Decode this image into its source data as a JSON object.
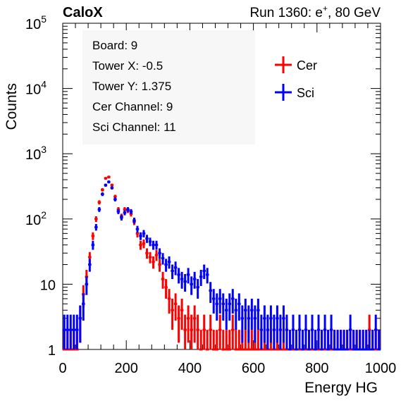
{
  "header": {
    "left_label": "CaloX",
    "right_label_prefix": "Run 1360: e",
    "right_label_sup": "+",
    "right_label_suffix": ", 80 GeV"
  },
  "stats_box": {
    "lines": [
      "Board: 9",
      "Tower X: -0.5",
      "Tower Y: 1.375",
      "Cer Channel: 9",
      "Sci Channel: 11"
    ]
  },
  "chart_data": {
    "type": "histogram",
    "xlabel": "Energy HG",
    "ylabel": "Counts",
    "xlim": [
      0,
      1000
    ],
    "ylim": [
      1,
      100000
    ],
    "yscale": "log",
    "bin_width": 10,
    "xticks": [
      0,
      200,
      400,
      600,
      800,
      1000
    ],
    "xtick_labels": [
      "0",
      "200",
      "400",
      "600",
      "800",
      "1000"
    ],
    "yticks": [
      1,
      10,
      100,
      1000,
      10000,
      100000
    ],
    "ytick_labels": [
      {
        "base": "1",
        "exp": ""
      },
      {
        "base": "10",
        "exp": ""
      },
      {
        "base": "10",
        "exp": "2"
      },
      {
        "base": "10",
        "exp": "3"
      },
      {
        "base": "10",
        "exp": "4"
      },
      {
        "base": "10",
        "exp": "5"
      }
    ],
    "legend_position": "top-right",
    "series": [
      {
        "name": "Cer",
        "color": "#ff0000",
        "bins": [
          {
            "x": 0,
            "y": 1
          },
          {
            "x": 10,
            "y": 1
          },
          {
            "x": 20,
            "y": 1
          },
          {
            "x": 30,
            "y": 1
          },
          {
            "x": 40,
            "y": 1
          },
          {
            "x": 50,
            "y": 3
          },
          {
            "x": 60,
            "y": 7
          },
          {
            "x": 70,
            "y": 13
          },
          {
            "x": 80,
            "y": 26
          },
          {
            "x": 90,
            "y": 55
          },
          {
            "x": 100,
            "y": 100
          },
          {
            "x": 110,
            "y": 180
          },
          {
            "x": 120,
            "y": 280
          },
          {
            "x": 130,
            "y": 420
          },
          {
            "x": 140,
            "y": 440
          },
          {
            "x": 150,
            "y": 330
          },
          {
            "x": 160,
            "y": 220
          },
          {
            "x": 170,
            "y": 140
          },
          {
            "x": 180,
            "y": 110
          },
          {
            "x": 190,
            "y": 140
          },
          {
            "x": 200,
            "y": 135
          },
          {
            "x": 210,
            "y": 120
          },
          {
            "x": 220,
            "y": 90
          },
          {
            "x": 230,
            "y": 60
          },
          {
            "x": 240,
            "y": 40
          },
          {
            "x": 250,
            "y": 42
          },
          {
            "x": 260,
            "y": 30
          },
          {
            "x": 270,
            "y": 26
          },
          {
            "x": 280,
            "y": 22
          },
          {
            "x": 290,
            "y": 28
          },
          {
            "x": 300,
            "y": 20
          },
          {
            "x": 310,
            "y": 12
          },
          {
            "x": 320,
            "y": 9
          },
          {
            "x": 330,
            "y": 6
          },
          {
            "x": 340,
            "y": 4
          },
          {
            "x": 350,
            "y": 5
          },
          {
            "x": 360,
            "y": 3
          },
          {
            "x": 370,
            "y": 4
          },
          {
            "x": 380,
            "y": 2
          },
          {
            "x": 390,
            "y": 3
          },
          {
            "x": 400,
            "y": 2
          },
          {
            "x": 410,
            "y": 3
          },
          {
            "x": 420,
            "y": 2
          },
          {
            "x": 430,
            "y": 1
          },
          {
            "x": 440,
            "y": 2
          },
          {
            "x": 450,
            "y": 1
          },
          {
            "x": 460,
            "y": 2
          },
          {
            "x": 470,
            "y": 1
          },
          {
            "x": 480,
            "y": 1
          },
          {
            "x": 490,
            "y": 2
          },
          {
            "x": 500,
            "y": 1
          },
          {
            "x": 510,
            "y": 1
          },
          {
            "x": 520,
            "y": 1
          },
          {
            "x": 530,
            "y": 2
          },
          {
            "x": 540,
            "y": 1
          },
          {
            "x": 550,
            "y": 1
          },
          {
            "x": 560,
            "y": 1
          },
          {
            "x": 570,
            "y": 1
          },
          {
            "x": 580,
            "y": 1
          },
          {
            "x": 590,
            "y": 1
          },
          {
            "x": 600,
            "y": 1
          },
          {
            "x": 610,
            "y": 1
          },
          {
            "x": 620,
            "y": 1
          },
          {
            "x": 630,
            "y": 1
          },
          {
            "x": 640,
            "y": 1
          },
          {
            "x": 650,
            "y": 1
          },
          {
            "x": 660,
            "y": 1
          },
          {
            "x": 670,
            "y": 1
          },
          {
            "x": 680,
            "y": 1
          },
          {
            "x": 690,
            "y": 1
          },
          {
            "x": 700,
            "y": 1
          },
          {
            "x": 710,
            "y": 1
          },
          {
            "x": 720,
            "y": 1
          },
          {
            "x": 730,
            "y": 1
          },
          {
            "x": 740,
            "y": 1
          },
          {
            "x": 750,
            "y": 1
          },
          {
            "x": 760,
            "y": 1
          },
          {
            "x": 770,
            "y": 1
          },
          {
            "x": 780,
            "y": 1
          },
          {
            "x": 790,
            "y": 1
          },
          {
            "x": 800,
            "y": 1
          },
          {
            "x": 810,
            "y": 1
          },
          {
            "x": 820,
            "y": 1
          },
          {
            "x": 830,
            "y": 1
          },
          {
            "x": 840,
            "y": 1
          },
          {
            "x": 850,
            "y": 1
          },
          {
            "x": 860,
            "y": 1
          },
          {
            "x": 870,
            "y": 1
          },
          {
            "x": 880,
            "y": 1
          },
          {
            "x": 890,
            "y": 1
          },
          {
            "x": 900,
            "y": 1
          },
          {
            "x": 910,
            "y": 1
          },
          {
            "x": 920,
            "y": 1
          },
          {
            "x": 930,
            "y": 1
          },
          {
            "x": 940,
            "y": 1
          },
          {
            "x": 950,
            "y": 1
          },
          {
            "x": 960,
            "y": 2
          },
          {
            "x": 970,
            "y": 1
          },
          {
            "x": 980,
            "y": 1
          },
          {
            "x": 990,
            "y": 1
          }
        ]
      },
      {
        "name": "Sci",
        "color": "#0000ff",
        "bins": [
          {
            "x": 0,
            "y": 2
          },
          {
            "x": 10,
            "y": 2
          },
          {
            "x": 20,
            "y": 2
          },
          {
            "x": 30,
            "y": 2
          },
          {
            "x": 40,
            "y": 2
          },
          {
            "x": 50,
            "y": 3
          },
          {
            "x": 60,
            "y": 5
          },
          {
            "x": 70,
            "y": 10
          },
          {
            "x": 80,
            "y": 20
          },
          {
            "x": 90,
            "y": 40
          },
          {
            "x": 100,
            "y": 75
          },
          {
            "x": 110,
            "y": 140
          },
          {
            "x": 120,
            "y": 240
          },
          {
            "x": 130,
            "y": 330
          },
          {
            "x": 140,
            "y": 370
          },
          {
            "x": 150,
            "y": 300
          },
          {
            "x": 160,
            "y": 200
          },
          {
            "x": 170,
            "y": 130
          },
          {
            "x": 180,
            "y": 105
          },
          {
            "x": 190,
            "y": 125
          },
          {
            "x": 200,
            "y": 140
          },
          {
            "x": 210,
            "y": 130
          },
          {
            "x": 220,
            "y": 95
          },
          {
            "x": 230,
            "y": 70
          },
          {
            "x": 240,
            "y": 55
          },
          {
            "x": 250,
            "y": 60
          },
          {
            "x": 260,
            "y": 50
          },
          {
            "x": 270,
            "y": 45
          },
          {
            "x": 280,
            "y": 40
          },
          {
            "x": 290,
            "y": 40
          },
          {
            "x": 300,
            "y": 30
          },
          {
            "x": 310,
            "y": 25
          },
          {
            "x": 320,
            "y": 20
          },
          {
            "x": 330,
            "y": 22
          },
          {
            "x": 340,
            "y": 16
          },
          {
            "x": 350,
            "y": 18
          },
          {
            "x": 360,
            "y": 14
          },
          {
            "x": 370,
            "y": 12
          },
          {
            "x": 380,
            "y": 11
          },
          {
            "x": 390,
            "y": 14
          },
          {
            "x": 400,
            "y": 10
          },
          {
            "x": 410,
            "y": 12
          },
          {
            "x": 420,
            "y": 9
          },
          {
            "x": 430,
            "y": 13
          },
          {
            "x": 440,
            "y": 16
          },
          {
            "x": 450,
            "y": 14
          },
          {
            "x": 460,
            "y": 8
          },
          {
            "x": 470,
            "y": 6
          },
          {
            "x": 480,
            "y": 5
          },
          {
            "x": 490,
            "y": 6
          },
          {
            "x": 500,
            "y": 5
          },
          {
            "x": 510,
            "y": 4
          },
          {
            "x": 520,
            "y": 5
          },
          {
            "x": 530,
            "y": 6
          },
          {
            "x": 540,
            "y": 4
          },
          {
            "x": 550,
            "y": 5
          },
          {
            "x": 560,
            "y": 3
          },
          {
            "x": 570,
            "y": 4
          },
          {
            "x": 580,
            "y": 3
          },
          {
            "x": 590,
            "y": 4
          },
          {
            "x": 600,
            "y": 3
          },
          {
            "x": 610,
            "y": 4
          },
          {
            "x": 620,
            "y": 2
          },
          {
            "x": 630,
            "y": 3
          },
          {
            "x": 640,
            "y": 2
          },
          {
            "x": 650,
            "y": 3
          },
          {
            "x": 660,
            "y": 2
          },
          {
            "x": 670,
            "y": 3
          },
          {
            "x": 680,
            "y": 2
          },
          {
            "x": 690,
            "y": 3
          },
          {
            "x": 700,
            "y": 2
          },
          {
            "x": 710,
            "y": 1
          },
          {
            "x": 720,
            "y": 2
          },
          {
            "x": 730,
            "y": 1
          },
          {
            "x": 740,
            "y": 2
          },
          {
            "x": 750,
            "y": 1
          },
          {
            "x": 760,
            "y": 2
          },
          {
            "x": 770,
            "y": 1
          },
          {
            "x": 780,
            "y": 2
          },
          {
            "x": 790,
            "y": 1
          },
          {
            "x": 800,
            "y": 2
          },
          {
            "x": 810,
            "y": 1
          },
          {
            "x": 820,
            "y": 2
          },
          {
            "x": 830,
            "y": 1
          },
          {
            "x": 840,
            "y": 2
          },
          {
            "x": 850,
            "y": 1
          },
          {
            "x": 860,
            "y": 1
          },
          {
            "x": 870,
            "y": 1
          },
          {
            "x": 880,
            "y": 1
          },
          {
            "x": 890,
            "y": 1
          },
          {
            "x": 900,
            "y": 2
          },
          {
            "x": 910,
            "y": 1
          },
          {
            "x": 920,
            "y": 1
          },
          {
            "x": 930,
            "y": 1
          },
          {
            "x": 940,
            "y": 1
          },
          {
            "x": 950,
            "y": 1
          },
          {
            "x": 960,
            "y": 1
          },
          {
            "x": 970,
            "y": 1
          },
          {
            "x": 980,
            "y": 2
          },
          {
            "x": 990,
            "y": 1
          }
        ]
      }
    ]
  }
}
